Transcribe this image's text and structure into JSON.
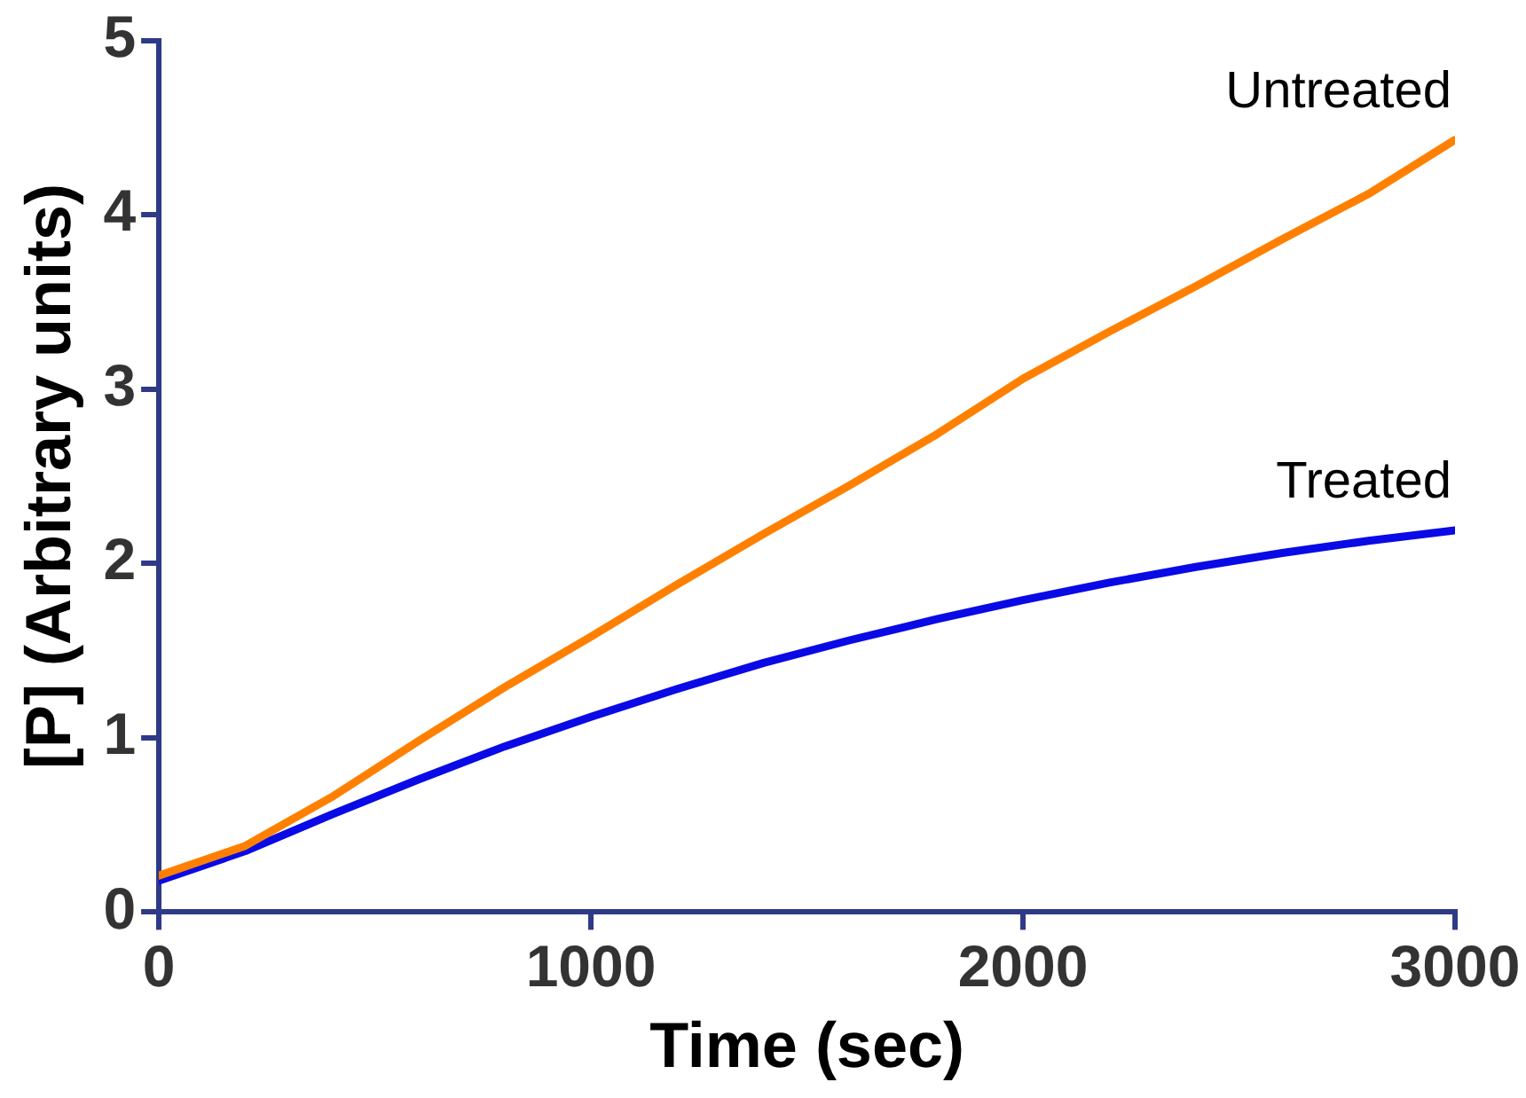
{
  "chart_data": {
    "type": "line",
    "xlabel": "Time (sec)",
    "ylabel": "[P] (Arbitrary units)",
    "x": [
      0,
      200,
      400,
      600,
      800,
      1000,
      1200,
      1400,
      1600,
      1800,
      2000,
      2200,
      2400,
      2600,
      2800,
      3000
    ],
    "series": [
      {
        "name": "Untreated",
        "color": "#ff8000",
        "values": [
          0.21,
          0.38,
          0.66,
          0.98,
          1.29,
          1.58,
          1.88,
          2.17,
          2.45,
          2.74,
          3.06,
          3.33,
          3.59,
          3.86,
          4.12,
          4.43
        ]
      },
      {
        "name": "Treated",
        "color": "#0a0ae6",
        "values": [
          0.18,
          0.35,
          0.56,
          0.76,
          0.95,
          1.12,
          1.28,
          1.43,
          1.56,
          1.68,
          1.79,
          1.89,
          1.98,
          2.06,
          2.13,
          2.19
        ]
      }
    ],
    "xlim": [
      0,
      3000
    ],
    "xticks": [
      0,
      1000,
      2000,
      3000
    ],
    "ylim": [
      0,
      5
    ],
    "yticks": [
      0,
      1,
      2,
      3,
      4,
      5
    ],
    "grid": false,
    "legend": false,
    "marker": "none",
    "line_style": "solid"
  }
}
